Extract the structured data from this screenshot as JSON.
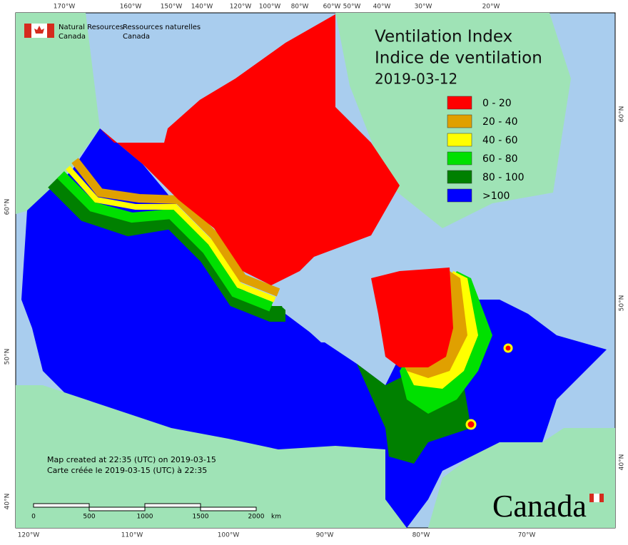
{
  "header": {
    "org_en": [
      "Natural Resources",
      "Canada"
    ],
    "org_fr": [
      "Ressources naturelles",
      "Canada"
    ]
  },
  "title": [
    "Ventilation Index",
    "Indice de ventilation",
    "2019-03-12"
  ],
  "legend": [
    {
      "label": "0 - 20",
      "color": "#ff0000"
    },
    {
      "label": "20 - 40",
      "color": "#e0a000"
    },
    {
      "label": "40 - 60",
      "color": "#ffff00"
    },
    {
      "label": "60 - 80",
      "color": "#00e000"
    },
    {
      "label": "80 - 100",
      "color": "#008000"
    },
    {
      "label": ">100",
      "color": "#0000ff"
    }
  ],
  "credits": [
    "Map created at 22:35 (UTC) on 2019-03-15",
    "Carte créée le 2019-03-15 (UTC) à 22:35"
  ],
  "scale_bar": {
    "labels": [
      "0",
      "500",
      "1000",
      "1500",
      "2000"
    ],
    "unit": "km"
  },
  "graticule": {
    "top": [
      "170°W",
      "160°W",
      "150°W",
      "140°W",
      "120°W",
      "100°W",
      "80°W",
      "60°W",
      "50°W",
      "40°W",
      "30°W",
      "20°W"
    ],
    "bottom": [
      "120°W",
      "110°W",
      "100°W",
      "90°W",
      "80°W",
      "70°W"
    ],
    "left": [
      "60°N",
      "50°N",
      "40°N"
    ],
    "right": [
      "60°N",
      "50°N",
      "40°N"
    ]
  },
  "wordmark": "Canada"
}
